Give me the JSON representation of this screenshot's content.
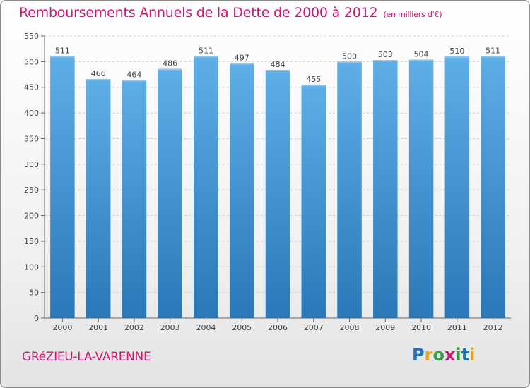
{
  "header": {
    "title": "Remboursements Annuels de la Dette de 2000 à 2012",
    "subtitle": "(en milliers d'€)"
  },
  "footer": {
    "city": "GRéZIEU-LA-VARENNE",
    "brand": "Proxiti",
    "brand_letters": [
      {
        "ch": "P",
        "color": "#1e73be"
      },
      {
        "ch": "r",
        "color": "#e8a317"
      },
      {
        "ch": "o",
        "color": "#2e9e44"
      },
      {
        "ch": "x",
        "color": "#d2166f"
      },
      {
        "ch": "i",
        "color": "#2e9e44"
      },
      {
        "ch": "t",
        "color": "#1e73be"
      },
      {
        "ch": "i",
        "color": "#e8a317"
      }
    ]
  },
  "chart_data": {
    "type": "bar",
    "title": "Remboursements Annuels de la Dette de 2000 à 2012",
    "xlabel": "",
    "ylabel": "",
    "categories": [
      "2000",
      "2001",
      "2002",
      "2003",
      "2004",
      "2005",
      "2006",
      "2007",
      "2008",
      "2009",
      "2010",
      "2011",
      "2012"
    ],
    "values": [
      511,
      466,
      464,
      486,
      511,
      497,
      484,
      455,
      500,
      503,
      504,
      510,
      511
    ],
    "ylim": [
      0,
      550
    ],
    "yticks": [
      0,
      50,
      100,
      150,
      200,
      250,
      300,
      350,
      400,
      450,
      500,
      550
    ],
    "grid": true,
    "colors": {
      "bar_top": "#5eaee8",
      "bar_bottom": "#2a78b8",
      "grid": "#cfcfcf",
      "axis_text": "#444444"
    }
  }
}
